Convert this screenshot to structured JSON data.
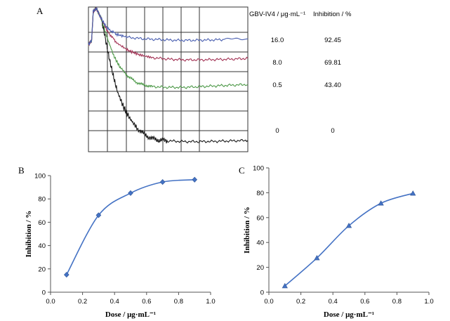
{
  "panels": {
    "a": {
      "label": "A"
    },
    "b": {
      "label": "B"
    },
    "c": {
      "label": "C"
    }
  },
  "table": {
    "col_dose": "GBV-IV4 / μg·mL⁻¹",
    "col_inhibition": "Inhibition / %",
    "rows": [
      {
        "dose": "16.0",
        "inhibition": "92.45"
      },
      {
        "dose": "8.0",
        "inhibition": "69.81"
      },
      {
        "dose": "0.5",
        "inhibition": "43.40"
      },
      {
        "dose": "0",
        "inhibition": "0"
      }
    ]
  },
  "colors": {
    "blue": "#4a5fb0",
    "red": "#a33355",
    "green": "#4f9a4a",
    "black": "#1a1a1a",
    "curve": "#4472c4",
    "grid": "#333333"
  },
  "chart_data": [
    {
      "panel": "A",
      "type": "line",
      "title": "",
      "xlabel": "",
      "ylabel": "",
      "series": [
        {
          "name": "16.0",
          "color": "blue",
          "x": [
            0,
            0.02,
            0.03,
            0.05,
            0.08,
            0.12,
            0.18,
            0.25,
            0.35,
            0.45,
            0.55,
            0.65,
            0.75,
            0.85,
            1.0
          ],
          "y": [
            0.74,
            0.77,
            0.97,
            0.99,
            0.92,
            0.85,
            0.81,
            0.79,
            0.78,
            0.775,
            0.77,
            0.77,
            0.772,
            0.775,
            0.78
          ]
        },
        {
          "name": "8.0",
          "color": "red",
          "x": [
            0,
            0.02,
            0.03,
            0.05,
            0.08,
            0.12,
            0.18,
            0.25,
            0.32,
            0.4,
            0.5,
            0.6,
            0.7,
            0.8,
            0.9,
            1.0
          ],
          "y": [
            0.74,
            0.77,
            0.97,
            0.99,
            0.92,
            0.83,
            0.75,
            0.7,
            0.67,
            0.65,
            0.64,
            0.635,
            0.635,
            0.637,
            0.64,
            0.645
          ]
        },
        {
          "name": "0.5",
          "color": "green",
          "x": [
            0,
            0.02,
            0.03,
            0.05,
            0.08,
            0.12,
            0.16,
            0.2,
            0.25,
            0.3,
            0.35,
            0.4,
            0.5,
            0.6,
            0.7,
            0.8,
            0.9,
            1.0
          ],
          "y": [
            0.74,
            0.77,
            0.97,
            0.99,
            0.92,
            0.78,
            0.66,
            0.58,
            0.52,
            0.48,
            0.46,
            0.45,
            0.445,
            0.445,
            0.45,
            0.455,
            0.46,
            0.465
          ]
        },
        {
          "name": "0",
          "color": "black",
          "x": [
            0,
            0.02,
            0.03,
            0.05,
            0.08,
            0.1,
            0.12,
            0.15,
            0.18,
            0.22,
            0.26,
            0.3,
            0.35,
            0.4,
            0.45,
            0.5,
            0.6,
            0.7,
            0.8,
            0.9,
            1.0
          ],
          "y": [
            0.74,
            0.77,
            0.97,
            0.99,
            0.92,
            0.82,
            0.7,
            0.55,
            0.42,
            0.31,
            0.23,
            0.17,
            0.12,
            0.09,
            0.08,
            0.075,
            0.07,
            0.07,
            0.072,
            0.075,
            0.078
          ]
        }
      ]
    },
    {
      "panel": "B",
      "type": "line",
      "title": "",
      "xlabel": "Dose / μg·mL⁻¹",
      "ylabel": "Inhibition / %",
      "xlim": [
        0.0,
        1.0
      ],
      "ylim": [
        0,
        100
      ],
      "xticks": [
        "0.0",
        "0.2",
        "0.4",
        "0.6",
        "0.8",
        "1.0"
      ],
      "yticks": [
        "0",
        "20",
        "40",
        "60",
        "80",
        "100"
      ],
      "marker": "diamond",
      "x": [
        0.1,
        0.3,
        0.5,
        0.7,
        0.9
      ],
      "y": [
        15,
        66,
        85,
        94.5,
        96.5
      ]
    },
    {
      "panel": "C",
      "type": "line",
      "title": "",
      "xlabel": "Dose / μg·mL⁻¹",
      "ylabel": "Inhibition / %",
      "xlim": [
        0.0,
        1.0
      ],
      "ylim": [
        0,
        100
      ],
      "xticks": [
        "0.0",
        "0.2",
        "0.4",
        "0.6",
        "0.8",
        "1.0"
      ],
      "yticks": [
        "0",
        "20",
        "40",
        "60",
        "80",
        "100"
      ],
      "marker": "triangle",
      "x": [
        0.1,
        0.3,
        0.5,
        0.7,
        0.9
      ],
      "y": [
        5,
        27.5,
        53.5,
        71.5,
        79.5
      ]
    }
  ]
}
